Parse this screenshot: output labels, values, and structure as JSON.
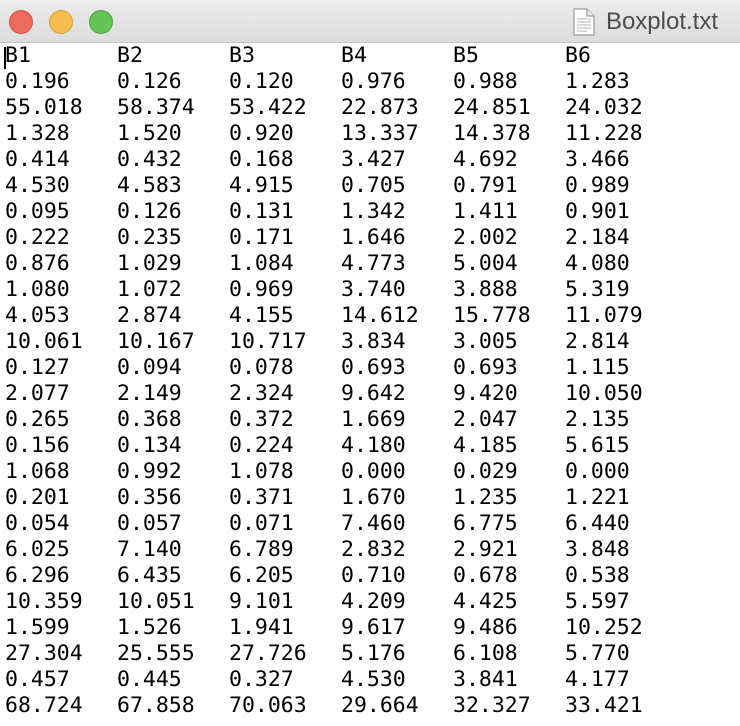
{
  "window": {
    "title": "Boxplot.txt",
    "buttons": {
      "close_color": "#ed6a5e",
      "minimize_color": "#f5be4f",
      "zoom_color": "#62c554"
    },
    "icon": "text-document-icon"
  },
  "table": {
    "headers": [
      "B1",
      "B2",
      "B3",
      "B4",
      "B5",
      "B6"
    ],
    "rows": [
      [
        "0.196",
        "0.126",
        "0.120",
        "0.976",
        "0.988",
        "1.283"
      ],
      [
        "55.018",
        "58.374",
        "53.422",
        "22.873",
        "24.851",
        "24.032"
      ],
      [
        "1.328",
        "1.520",
        "0.920",
        "13.337",
        "14.378",
        "11.228"
      ],
      [
        "0.414",
        "0.432",
        "0.168",
        "3.427",
        "4.692",
        "3.466"
      ],
      [
        "4.530",
        "4.583",
        "4.915",
        "0.705",
        "0.791",
        "0.989"
      ],
      [
        "0.095",
        "0.126",
        "0.131",
        "1.342",
        "1.411",
        "0.901"
      ],
      [
        "0.222",
        "0.235",
        "0.171",
        "1.646",
        "2.002",
        "2.184"
      ],
      [
        "0.876",
        "1.029",
        "1.084",
        "4.773",
        "5.004",
        "4.080"
      ],
      [
        "1.080",
        "1.072",
        "0.969",
        "3.740",
        "3.888",
        "5.319"
      ],
      [
        "4.053",
        "2.874",
        "4.155",
        "14.612",
        "15.778",
        "11.079"
      ],
      [
        "10.061",
        "10.167",
        "10.717",
        "3.834",
        "3.005",
        "2.814"
      ],
      [
        "0.127",
        "0.094",
        "0.078",
        "0.693",
        "0.693",
        "1.115"
      ],
      [
        "2.077",
        "2.149",
        "2.324",
        "9.642",
        "9.420",
        "10.050"
      ],
      [
        "0.265",
        "0.368",
        "0.372",
        "1.669",
        "2.047",
        "2.135"
      ],
      [
        "0.156",
        "0.134",
        "0.224",
        "4.180",
        "4.185",
        "5.615"
      ],
      [
        "1.068",
        "0.992",
        "1.078",
        "0.000",
        "0.029",
        "0.000"
      ],
      [
        "0.201",
        "0.356",
        "0.371",
        "1.670",
        "1.235",
        "1.221"
      ],
      [
        "0.054",
        "0.057",
        "0.071",
        "7.460",
        "6.775",
        "6.440"
      ],
      [
        "6.025",
        "7.140",
        "6.789",
        "2.832",
        "2.921",
        "3.848"
      ],
      [
        "6.296",
        "6.435",
        "6.205",
        "0.710",
        "0.678",
        "0.538"
      ],
      [
        "10.359",
        "10.051",
        "9.101",
        "4.209",
        "4.425",
        "5.597"
      ],
      [
        "1.599",
        "1.526",
        "1.941",
        "9.617",
        "9.486",
        "10.252"
      ],
      [
        "27.304",
        "25.555",
        "27.726",
        "5.176",
        "6.108",
        "5.770"
      ],
      [
        "0.457",
        "0.445",
        "0.327",
        "4.530",
        "3.841",
        "4.177"
      ],
      [
        "68.724",
        "67.858",
        "70.063",
        "29.664",
        "32.327",
        "33.421"
      ]
    ]
  }
}
